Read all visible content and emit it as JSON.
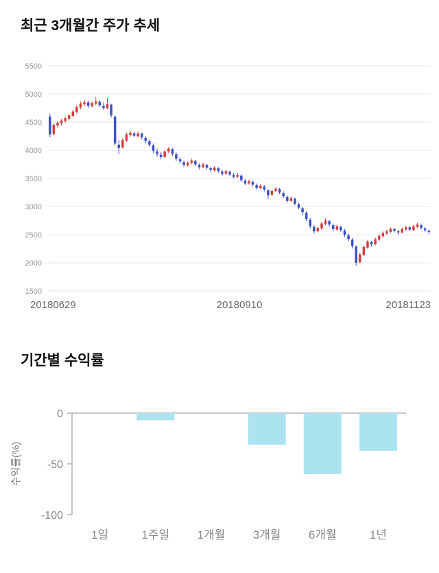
{
  "price_section": {
    "title": "최근 3개월간 주가 추세"
  },
  "returns_section": {
    "title": "기간별 수익률"
  },
  "chart_data": [
    {
      "type": "candlestick",
      "title": "최근 3개월간 주가 추세",
      "ylim": [
        1500,
        5500
      ],
      "yticks": [
        5500,
        5000,
        4500,
        4000,
        3500,
        3000,
        2500,
        2000,
        1500
      ],
      "xticklabels": [
        "20180629",
        "20180910",
        "20181123"
      ],
      "up_color": "#d54040",
      "down_color": "#3b50c6",
      "grid_color": "#e7e7e7",
      "candles": [
        [
          4600,
          4650,
          4230,
          4280
        ],
        [
          4290,
          4480,
          4260,
          4450
        ],
        [
          4440,
          4520,
          4400,
          4490
        ],
        [
          4480,
          4560,
          4440,
          4530
        ],
        [
          4520,
          4600,
          4490,
          4570
        ],
        [
          4560,
          4650,
          4530,
          4620
        ],
        [
          4610,
          4720,
          4590,
          4690
        ],
        [
          4680,
          4800,
          4660,
          4770
        ],
        [
          4760,
          4870,
          4730,
          4830
        ],
        [
          4820,
          4900,
          4780,
          4850
        ],
        [
          4850,
          4880,
          4750,
          4790
        ],
        [
          4780,
          4870,
          4760,
          4840
        ],
        [
          4830,
          4950,
          4800,
          4870
        ],
        [
          4860,
          4890,
          4770,
          4800
        ],
        [
          4790,
          4850,
          4720,
          4750
        ],
        [
          4750,
          4930,
          4730,
          4820
        ],
        [
          4810,
          4830,
          4580,
          4620
        ],
        [
          4600,
          4620,
          4080,
          4120
        ],
        [
          4100,
          4180,
          3930,
          4040
        ],
        [
          4050,
          4220,
          4030,
          4180
        ],
        [
          4170,
          4320,
          4150,
          4280
        ],
        [
          4270,
          4350,
          4240,
          4310
        ],
        [
          4300,
          4330,
          4230,
          4260
        ],
        [
          4250,
          4330,
          4230,
          4300
        ],
        [
          4300,
          4310,
          4190,
          4230
        ],
        [
          4220,
          4250,
          4130,
          4170
        ],
        [
          4160,
          4190,
          4060,
          4100
        ],
        [
          4090,
          4120,
          3950,
          3990
        ],
        [
          3980,
          4030,
          3890,
          3930
        ],
        [
          3920,
          3970,
          3840,
          3880
        ],
        [
          3880,
          4010,
          3860,
          3980
        ],
        [
          3980,
          4060,
          3950,
          4030
        ],
        [
          4020,
          4040,
          3900,
          3940
        ],
        [
          3930,
          3960,
          3810,
          3850
        ],
        [
          3840,
          3880,
          3760,
          3800
        ],
        [
          3790,
          3820,
          3700,
          3740
        ],
        [
          3730,
          3810,
          3710,
          3780
        ],
        [
          3780,
          3850,
          3750,
          3820
        ],
        [
          3810,
          3830,
          3720,
          3750
        ],
        [
          3740,
          3770,
          3660,
          3700
        ],
        [
          3700,
          3780,
          3680,
          3750
        ],
        [
          3740,
          3760,
          3660,
          3690
        ],
        [
          3680,
          3710,
          3610,
          3650
        ],
        [
          3640,
          3720,
          3620,
          3690
        ],
        [
          3680,
          3700,
          3600,
          3630
        ],
        [
          3620,
          3650,
          3550,
          3580
        ],
        [
          3580,
          3660,
          3560,
          3630
        ],
        [
          3620,
          3640,
          3540,
          3570
        ],
        [
          3560,
          3600,
          3500,
          3530
        ],
        [
          3530,
          3600,
          3510,
          3560
        ],
        [
          3550,
          3570,
          3440,
          3470
        ],
        [
          3460,
          3490,
          3380,
          3410
        ],
        [
          3410,
          3480,
          3390,
          3450
        ],
        [
          3440,
          3460,
          3360,
          3390
        ],
        [
          3380,
          3410,
          3300,
          3330
        ],
        [
          3330,
          3400,
          3310,
          3370
        ],
        [
          3360,
          3380,
          3270,
          3300
        ],
        [
          3290,
          3310,
          3130,
          3200
        ],
        [
          3210,
          3300,
          3190,
          3280
        ],
        [
          3280,
          3350,
          3260,
          3320
        ],
        [
          3310,
          3330,
          3220,
          3250
        ],
        [
          3240,
          3270,
          3150,
          3180
        ],
        [
          3170,
          3200,
          3070,
          3100
        ],
        [
          3100,
          3180,
          3080,
          3150
        ],
        [
          3140,
          3160,
          3020,
          3050
        ],
        [
          3040,
          3070,
          2950,
          2980
        ],
        [
          2970,
          3000,
          2840,
          2900
        ],
        [
          2890,
          2920,
          2740,
          2780
        ],
        [
          2770,
          2800,
          2610,
          2650
        ],
        [
          2640,
          2670,
          2520,
          2560
        ],
        [
          2560,
          2650,
          2540,
          2620
        ],
        [
          2610,
          2730,
          2590,
          2700
        ],
        [
          2690,
          2790,
          2670,
          2750
        ],
        [
          2740,
          2760,
          2640,
          2680
        ],
        [
          2670,
          2700,
          2560,
          2600
        ],
        [
          2590,
          2680,
          2570,
          2650
        ],
        [
          2640,
          2660,
          2550,
          2580
        ],
        [
          2570,
          2600,
          2460,
          2500
        ],
        [
          2490,
          2520,
          2380,
          2420
        ],
        [
          2410,
          2440,
          2260,
          2300
        ],
        [
          2290,
          2310,
          1950,
          2000
        ],
        [
          2010,
          2180,
          1990,
          2150
        ],
        [
          2140,
          2310,
          2120,
          2280
        ],
        [
          2270,
          2410,
          2250,
          2380
        ],
        [
          2370,
          2390,
          2290,
          2330
        ],
        [
          2330,
          2450,
          2310,
          2420
        ],
        [
          2410,
          2510,
          2390,
          2480
        ],
        [
          2470,
          2560,
          2450,
          2530
        ],
        [
          2520,
          2590,
          2500,
          2560
        ],
        [
          2550,
          2630,
          2530,
          2600
        ],
        [
          2600,
          2620,
          2540,
          2570
        ],
        [
          2560,
          2580,
          2500,
          2540
        ],
        [
          2540,
          2630,
          2520,
          2600
        ],
        [
          2590,
          2660,
          2570,
          2630
        ],
        [
          2630,
          2650,
          2560,
          2590
        ],
        [
          2580,
          2680,
          2560,
          2650
        ],
        [
          2640,
          2710,
          2620,
          2680
        ],
        [
          2670,
          2690,
          2590,
          2620
        ],
        [
          2610,
          2640,
          2550,
          2580
        ],
        [
          2570,
          2590,
          2510,
          2550
        ]
      ]
    },
    {
      "type": "bar",
      "title": "기간별 수익률",
      "categories": [
        "1일",
        "1주일",
        "1개월",
        "3개월",
        "6개월",
        "1년"
      ],
      "values": [
        0,
        -7,
        0,
        -31,
        -60,
        -37
      ],
      "ylabel": "수익률(%)",
      "ylim": [
        -100,
        0
      ],
      "yticks": [
        0,
        -50,
        -100
      ],
      "bar_color": "#abe3f0",
      "axis_color": "#b3b3b3",
      "legend": "none",
      "grid": "off"
    }
  ]
}
